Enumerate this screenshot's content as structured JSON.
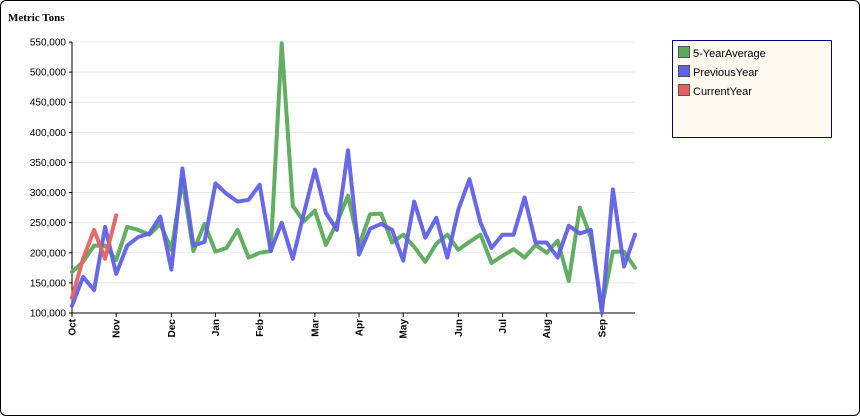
{
  "chart_data": {
    "type": "line",
    "ylabel": "Metric Tons",
    "ylim": [
      100000,
      550000
    ],
    "yticks": [
      100000,
      150000,
      200000,
      250000,
      300000,
      350000,
      400000,
      450000,
      500000,
      550000
    ],
    "ytick_labels": [
      "100,000",
      "150,000",
      "200,000",
      "250,000",
      "300,000",
      "350,000",
      "400,000",
      "450,000",
      "500,000",
      "550,000"
    ],
    "x_month_ticks": [
      {
        "label": "Oct",
        "week": 0
      },
      {
        "label": "Nov",
        "week": 4
      },
      {
        "label": "Dec",
        "week": 9
      },
      {
        "label": "Jan",
        "week": 13
      },
      {
        "label": "Feb",
        "week": 17
      },
      {
        "label": "Mar",
        "week": 22
      },
      {
        "label": "Apr",
        "week": 26
      },
      {
        "label": "May",
        "week": 30
      },
      {
        "label": "Jun",
        "week": 35
      },
      {
        "label": "Jul",
        "week": 39
      },
      {
        "label": "Aug",
        "week": 43
      },
      {
        "label": "Sep",
        "week": 48
      }
    ],
    "grid": true,
    "legend_position": "top-right",
    "series": [
      {
        "name": "5-YearAverage",
        "color": "#5aaa5a",
        "values": [
          168000,
          185000,
          212000,
          212000,
          188000,
          243000,
          238000,
          230000,
          248000,
          205000,
          320000,
          203000,
          248000,
          202000,
          208000,
          238000,
          192000,
          200000,
          203000,
          548000,
          278000,
          252000,
          270000,
          213000,
          250000,
          295000,
          212000,
          264000,
          265000,
          217000,
          230000,
          210000,
          185000,
          215000,
          230000,
          205000,
          218000,
          230000,
          183000,
          195000,
          206000,
          192000,
          213000,
          200000,
          220000,
          153000,
          275000,
          225000,
          110000,
          202000,
          202000,
          175000
        ]
      },
      {
        "name": "PreviousYear",
        "color": "#6060e8",
        "values": [
          112000,
          160000,
          138000,
          243000,
          165000,
          212000,
          226000,
          232000,
          260000,
          172000,
          340000,
          212000,
          218000,
          315000,
          298000,
          285000,
          288000,
          313000,
          203000,
          250000,
          190000,
          265000,
          338000,
          266000,
          238000,
          370000,
          197000,
          240000,
          248000,
          238000,
          187000,
          285000,
          225000,
          258000,
          192000,
          272000,
          322000,
          250000,
          208000,
          230000,
          230000,
          292000,
          217000,
          217000,
          192000,
          245000,
          232000,
          238000,
          100000,
          305000,
          177000,
          230000
        ]
      },
      {
        "name": "CurrentYear",
        "color": "#e86060",
        "values": [
          125000,
          190000,
          238000,
          190000,
          262000
        ]
      }
    ]
  }
}
